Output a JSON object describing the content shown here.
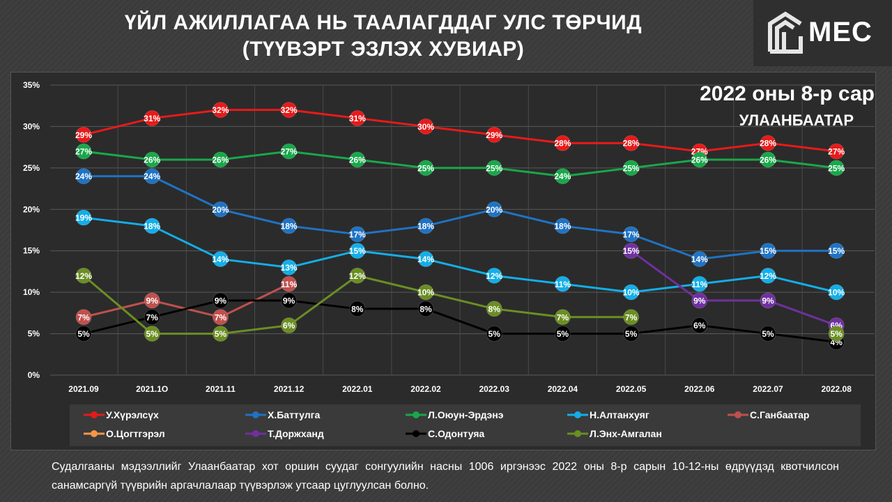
{
  "header": {
    "title_line1": "ҮЙЛ АЖИЛЛАГАА НЬ ТААЛАГДДАГ УЛС ТӨРЧИД",
    "title_line2": "(ТҮҮВЭРТ ЭЗЛЭХ ХУВИАР)",
    "logo_text": "MEC"
  },
  "chart_data": {
    "type": "line",
    "subtitle": "2022 оны 8-р сар",
    "location": "УЛААНБААТАР",
    "categories": [
      "2021.09",
      "2021.1O",
      "2021.11",
      "2021.12",
      "2022.01",
      "2022.02",
      "2022.03",
      "2022.04",
      "2022.05",
      "2022.06",
      "2022.07",
      "2022.08"
    ],
    "ylim": [
      0,
      35
    ],
    "yticks": [
      "0%",
      "5%",
      "10%",
      "15%",
      "20%",
      "25%",
      "30%",
      "35%"
    ],
    "grid": true,
    "legend_position": "bottom",
    "series": [
      {
        "name": "У.Хүрэлсүх",
        "color": "#e81a1a",
        "values": [
          29,
          31,
          32,
          32,
          31,
          30,
          29,
          28,
          28,
          27,
          28,
          27
        ]
      },
      {
        "name": "Х.Баттулга",
        "color": "#1f73c4",
        "values": [
          24,
          24,
          20,
          18,
          17,
          18,
          20,
          18,
          17,
          14,
          15,
          15
        ]
      },
      {
        "name": "Л.Оюун-Эрдэнэ",
        "color": "#18a84a",
        "values": [
          27,
          26,
          26,
          27,
          26,
          25,
          25,
          24,
          25,
          26,
          26,
          25
        ]
      },
      {
        "name": "Н.Алтанхуяг",
        "color": "#13aee8",
        "values": [
          19,
          18,
          14,
          13,
          15,
          14,
          12,
          11,
          10,
          11,
          12,
          10
        ]
      },
      {
        "name": "С.Ганбаатар",
        "color": "#c0504d",
        "values": [
          7,
          9,
          7,
          11,
          null,
          null,
          null,
          null,
          null,
          null,
          null,
          null
        ]
      },
      {
        "name": "О.Цогтгэрэл",
        "color": "#f79646",
        "values": [
          null,
          null,
          null,
          null,
          null,
          null,
          null,
          null,
          null,
          null,
          null,
          null
        ]
      },
      {
        "name": "Т.Доржханд",
        "color": "#7030a0",
        "values": [
          null,
          null,
          null,
          null,
          null,
          null,
          null,
          null,
          15,
          9,
          9,
          6
        ]
      },
      {
        "name": "С.Одонтуяа",
        "color": "#000000",
        "values": [
          5,
          7,
          9,
          9,
          8,
          8,
          5,
          5,
          5,
          6,
          5,
          4
        ]
      },
      {
        "name": "Л.Энх-Амгалан",
        "color": "#6b8e23",
        "values": [
          12,
          5,
          5,
          6,
          12,
          10,
          8,
          7,
          7,
          null,
          null,
          5
        ]
      }
    ]
  },
  "footnote": "Судалгааны мэдээллийг Улаанбаатар хот оршин суудаг сонгуулийн насны 1006 иргэнээс 2022 оны 8-р сарын 10-12-ны өдрүүдэд квотчилсон санамсаргүй түүврийн аргачлалаар түүвэрлэж утсаар цуглуулсан болно."
}
